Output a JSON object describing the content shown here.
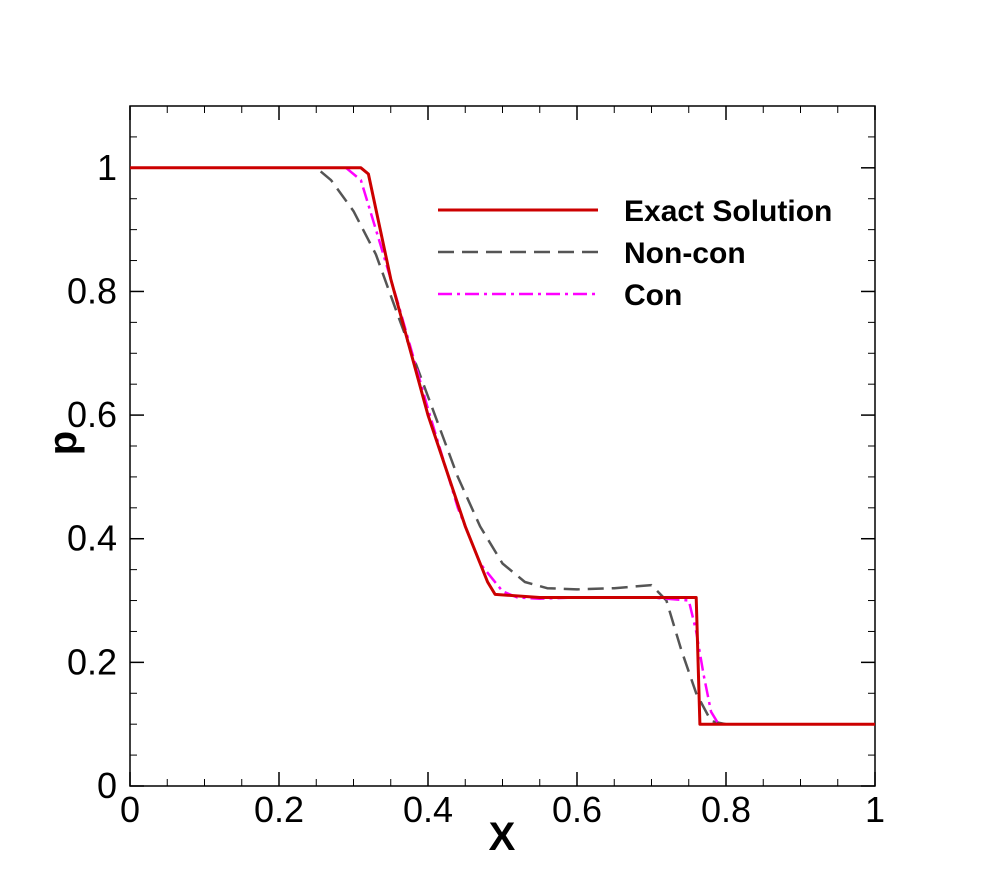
{
  "chart_data": {
    "type": "line",
    "title": "",
    "xlabel": "X",
    "ylabel": "p",
    "xlim": [
      0,
      1
    ],
    "ylim": [
      0,
      1.1
    ],
    "xticks": [
      0,
      0.2,
      0.4,
      0.6,
      0.8,
      1
    ],
    "xtick_labels": [
      "0",
      "0.2",
      "0.4",
      "0.6",
      "0.8",
      "1"
    ],
    "yticks": [
      0,
      0.2,
      0.4,
      0.6,
      0.8,
      1
    ],
    "ytick_labels": [
      "0",
      "0.2",
      "0.4",
      "0.6",
      "0.8",
      "1"
    ],
    "grid": false,
    "legend_position": "top-right",
    "series": [
      {
        "name": "Exact Solution",
        "color": "#cc0000",
        "style": "solid",
        "x": [
          0,
          0.31,
          0.32,
          0.35,
          0.4,
          0.45,
          0.48,
          0.49,
          0.55,
          0.65,
          0.7,
          0.76,
          0.765,
          0.8,
          1.0
        ],
        "y": [
          1.0,
          1.0,
          0.99,
          0.82,
          0.6,
          0.42,
          0.33,
          0.31,
          0.305,
          0.305,
          0.305,
          0.305,
          0.1,
          0.1,
          0.1
        ]
      },
      {
        "name": "Non-con",
        "color": "#555555",
        "style": "dashed",
        "x": [
          0,
          0.25,
          0.27,
          0.3,
          0.33,
          0.36,
          0.4,
          0.44,
          0.47,
          0.5,
          0.53,
          0.56,
          0.6,
          0.65,
          0.7,
          0.72,
          0.74,
          0.76,
          0.78,
          0.8,
          1.0
        ],
        "y": [
          1.0,
          1.0,
          0.98,
          0.93,
          0.86,
          0.76,
          0.63,
          0.5,
          0.42,
          0.36,
          0.33,
          0.32,
          0.318,
          0.32,
          0.325,
          0.3,
          0.22,
          0.15,
          0.105,
          0.1,
          0.1
        ]
      },
      {
        "name": "Con",
        "color": "#ff00ff",
        "style": "dashdot",
        "x": [
          0,
          0.29,
          0.31,
          0.33,
          0.36,
          0.4,
          0.44,
          0.47,
          0.5,
          0.52,
          0.55,
          0.6,
          0.7,
          0.75,
          0.76,
          0.77,
          0.78,
          0.79,
          0.8,
          1.0
        ],
        "y": [
          1.0,
          1.0,
          0.98,
          0.9,
          0.78,
          0.61,
          0.45,
          0.36,
          0.315,
          0.305,
          0.303,
          0.305,
          0.305,
          0.3,
          0.25,
          0.18,
          0.12,
          0.1,
          0.1,
          0.1
        ]
      }
    ]
  }
}
